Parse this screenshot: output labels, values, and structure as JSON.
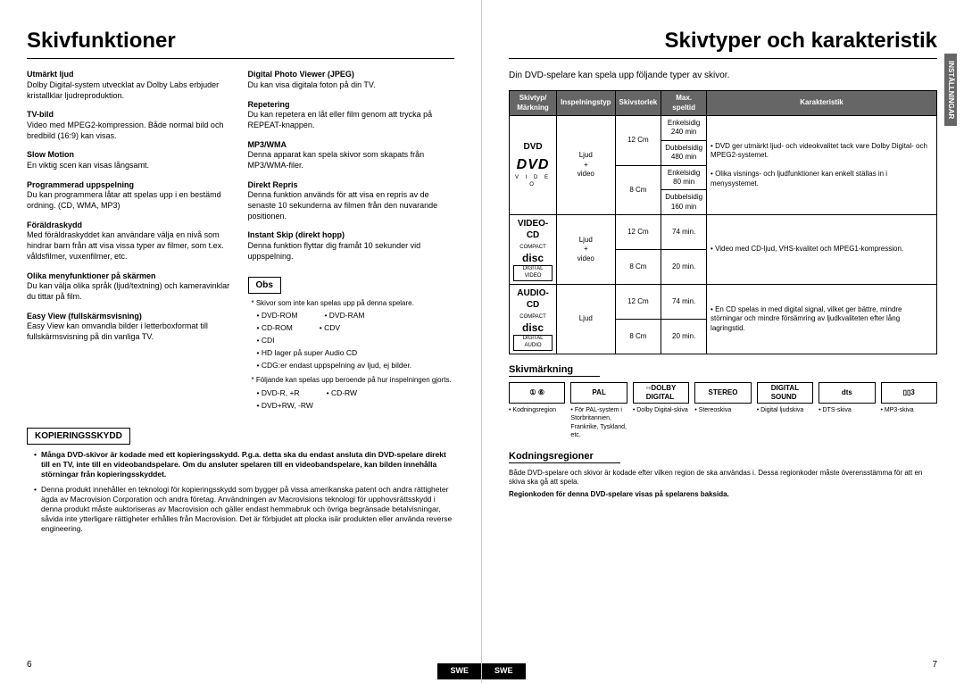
{
  "left": {
    "title": "Skivfunktioner",
    "features_col1": [
      {
        "title": "Utmärkt ljud",
        "body": "Dolby Digital-system utvecklat av Dolby Labs erbjuder kristallklar ljudreproduktion."
      },
      {
        "title": "TV-bild",
        "body": "Video med MPEG2-kompression. Både normal bild och bredbild (16:9) kan visas."
      },
      {
        "title": "Slow Motion",
        "body": "En viktig scen kan visas långsamt."
      },
      {
        "title": "Programmerad uppspelning",
        "body": "Du kan programmera låtar att spelas upp i en bestämd ordning. (CD, WMA, MP3)"
      },
      {
        "title": "Föräldraskydd",
        "body": "Med föräldraskyddet kan användare välja en nivå som hindrar barn från att visa vissa typer av filmer, som t.ex. våldsfilmer, vuxenfilmer, etc."
      },
      {
        "title": "Olika menyfunktioner på skärmen",
        "body": "Du kan välja olika språk (ljud/textning) och kameravinklar du tittar på film."
      },
      {
        "title": "Easy View (fullskärmsvisning)",
        "body": "Easy View kan omvandla bilder i letterboxformat till fullskärmsvisning på din vanliga TV."
      }
    ],
    "features_col2": [
      {
        "title": "Digital Photo Viewer (JPEG)",
        "body": "Du kan visa digitala foton på din TV."
      },
      {
        "title": "Repetering",
        "body": "Du kan repetera en låt eller film genom att trycka på REPEAT-knappen."
      },
      {
        "title": "MP3/WMA",
        "body": "Denna apparat kan spela skivor som skapats från MP3/WMA-filer."
      },
      {
        "title": "Direkt Repris",
        "body": "Denna funktion används för att visa en repris av de senaste 10 sekunderna av filmen från den nuvarande positionen."
      },
      {
        "title": "Instant Skip (direkt hopp)",
        "body": "Denna funktion flyttar dig framåt 10 sekunder vid uppspelning."
      }
    ],
    "obs_label": "Obs",
    "obs_line1": "Skivor som inte kan spelas upp på denna spelare.",
    "obs_discs": [
      [
        "DVD-ROM",
        "DVD-RAM"
      ],
      [
        "CD-ROM",
        "CDV"
      ],
      [
        "CDI",
        ""
      ]
    ],
    "obs_extra1": "HD lager på super Audio CD",
    "obs_extra2": "CDG:er endast uppspelning av ljud, ej bilder.",
    "obs_line2": "Följande kan spelas upp beroende på hur inspelningen gjorts.",
    "obs_discs2": [
      [
        "DVD-R, +R",
        "CD-RW"
      ],
      [
        "DVD+RW, -RW",
        ""
      ]
    ],
    "copy_label": "KOPIERINGSSKYDD",
    "copy_bullets": [
      "Många DVD-skivor är kodade med ett kopieringsskydd. P.g.a. detta ska du endast ansluta din DVD-spelare direkt till en TV, inte till en videobandspelare. Om du ansluter spelaren till en videobandspelare, kan bilden innehålla störningar från kopieringsskyddet.",
      "Denna produkt innehåller en teknologi för kopieringsskydd som bygger på vissa amerikanska patent och andra rättigheter ägda av Macrovision Corporation och andra företag. Användningen av Macrovisions teknologi för upphovsrättsskydd i denna produkt måste auktoriseras av Macrovision och gäller endast hemmabruk och övriga begränsade betalvisningar, såvida inte ytterligare rättigheter erhålles från Macrovision. Det är förbjudet att plocka isär produkten eller använda reverse engineering."
    ],
    "page_num": "6",
    "swe": "SWE"
  },
  "right": {
    "title": "Skivtyper och karakteristik",
    "side_tab": "INSTÄLLNINGAR",
    "intro": "Din DVD-spelare kan spela upp följande typer av skivor.",
    "table": {
      "headers": [
        "Skivtyp/\nMärkning",
        "Inspelningstyp",
        "Skivstorlek",
        "Max.\nspeltid",
        "Karakteristik"
      ],
      "rows": [
        {
          "type": "DVD",
          "logo": "dvd",
          "rec": "Ljud\n+\nvideo",
          "cells": [
            [
              "12 Cm",
              "Enkelsidig\n240 min"
            ],
            [
              "",
              "Dubbelsidig\n480 min"
            ],
            [
              "8 Cm",
              "Enkelsidig\n80 min"
            ],
            [
              "",
              "Dubbelsidig\n160 min"
            ]
          ],
          "char": "• DVD ger utmärkt ljud- och videokvalitet tack vare Dolby Digital- och MPEG2-systemet.\n\n• Olika visnings- och ljudfunktioner kan enkelt ställas in i menysystemet."
        },
        {
          "type": "VIDEO-CD",
          "logo": "vcd",
          "rec": "Ljud\n+\nvideo",
          "cells": [
            [
              "12 Cm",
              "74 min."
            ],
            [
              "8 Cm",
              "20 min."
            ]
          ],
          "char": "• Video med CD-ljud, VHS-kvalitet och MPEG1-kompression."
        },
        {
          "type": "AUDIO-CD",
          "logo": "acd",
          "rec": "Ljud",
          "cells": [
            [
              "12 Cm",
              "74 min."
            ],
            [
              "8 Cm",
              "20 min."
            ]
          ],
          "char": "• En CD spelas in med digital signal, vilket ger bättre, mindre störningar och mindre försämring av ljudkvaliteten efter lång lagringstid."
        }
      ]
    },
    "mark_label": "Skivmärkning",
    "marks": [
      {
        "box": "① ⑥",
        "desc": "• Kodningsregion"
      },
      {
        "box": "PAL",
        "desc": "• För PAL-system i Storbritannien, Frankrike, Tyskland, etc."
      },
      {
        "box": "▫▫DOLBY\nDIGITAL",
        "desc": "• Dolby Digital-skiva"
      },
      {
        "box": "STEREO",
        "desc": "• Stereoskiva"
      },
      {
        "box": "DIGITAL\nSOUND",
        "desc": "• Digital ljudskiva"
      },
      {
        "box": "dts",
        "desc": "• DTS-skiva"
      },
      {
        "box": "▯▯3",
        "desc": "• MP3-skiva"
      }
    ],
    "region_label": "Kodningsregioner",
    "region_text1": "Både DVD-spelare och skivor är kodade efter vilken region de ska användas i. Dessa regionkoder måste överensstämma för att en skiva ska gå att spela.",
    "region_text2": "Regionkoden för denna DVD-spelare visas på spelarens baksida.",
    "page_num": "7",
    "swe": "SWE"
  }
}
